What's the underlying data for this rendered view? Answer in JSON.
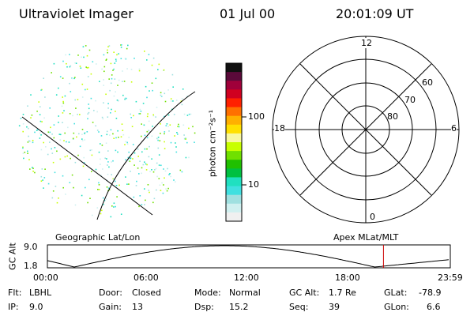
{
  "header": {
    "instrument": "Ultraviolet Imager",
    "date": "01 Jul 00",
    "time": "20:01:09 UT"
  },
  "colorbar": {
    "unit_label": "photon cm⁻²s⁻¹",
    "ticks": [
      "100",
      "10"
    ],
    "scale": "log",
    "colors": [
      "#101010",
      "#5a0a3a",
      "#a0003a",
      "#d00020",
      "#ff2000",
      "#ff7000",
      "#ffb000",
      "#ffe000",
      "#f8f8a0",
      "#c8ff00",
      "#70e000",
      "#20c000",
      "#00c040",
      "#20e0c0",
      "#40e0e0",
      "#a0e0e0",
      "#d0f0f0",
      "#f0f0f0"
    ]
  },
  "left_panel": {
    "label": "Geographic Lat/Lon"
  },
  "right_panel": {
    "label": "Apex MLat/MLT",
    "mlt_labels": {
      "top": "12",
      "left": "18",
      "right": "6",
      "bottom": "0"
    },
    "lat_rings": [
      "60",
      "70",
      "80"
    ]
  },
  "altitude_plot": {
    "ylabel": "GC Alt",
    "yticks": [
      "9.0",
      "1.8"
    ],
    "xticks": [
      "00:00",
      "06:00",
      "12:00",
      "18:00",
      "23:59"
    ],
    "marker_time_hours": 20.02,
    "marker_color": "#cc0000"
  },
  "status": {
    "flt_label": "Flt:",
    "flt_value": "LBHL",
    "ip_label": "IP:",
    "ip_value": "9.0",
    "door_label": "Door:",
    "door_value": "Closed",
    "gain_label": "Gain:",
    "gain_value": "13",
    "mode_label": "Mode:",
    "mode_value": "Normal",
    "dsp_label": "Dsp:",
    "dsp_value": "15.2",
    "gcalt_label": "GC Alt:",
    "gcalt_value": "1.7 Re",
    "seq_label": "Seq:",
    "seq_value": "39",
    "glat_label": "GLat:",
    "glat_value": "-78.9",
    "glon_label": "GLon:",
    "glon_value": "6.6"
  }
}
